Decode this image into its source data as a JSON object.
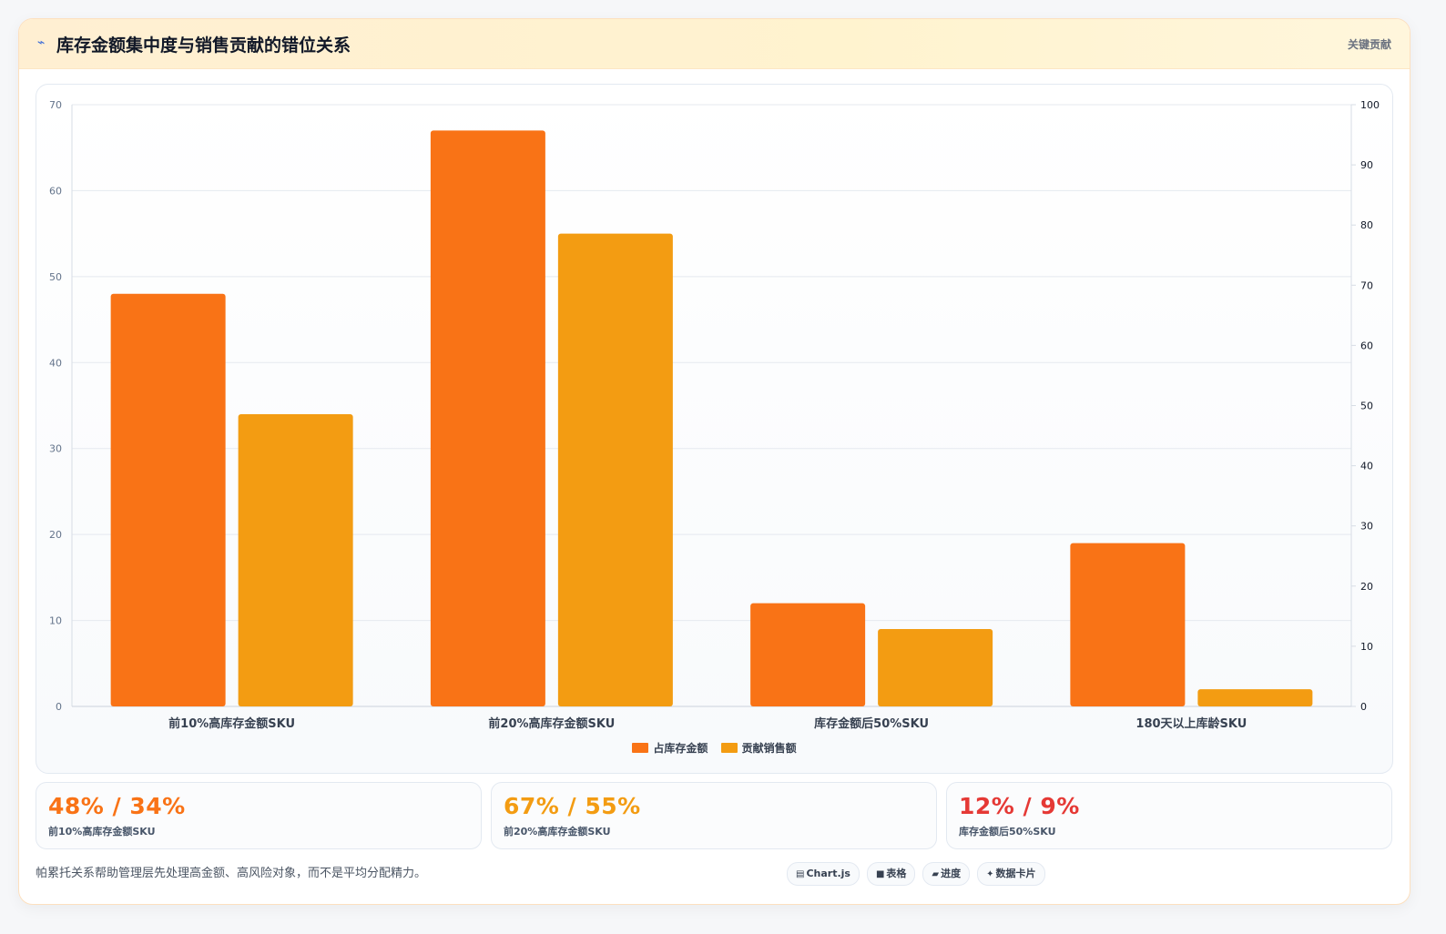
{
  "header": {
    "icon": "lightning-icon",
    "title": "库存金额集中度与销售贡献的错位关系",
    "tag": "关键贡献"
  },
  "colors": {
    "inventory": "#f97316",
    "sales": "#f39c12",
    "stat1": "#f97316",
    "stat2": "#f39c12",
    "stat3": "#e53935"
  },
  "chart_data": {
    "type": "bar",
    "categories": [
      "前10%高库存金额SKU",
      "前20%高库存金额SKU",
      "库存金额后50%SKU",
      "180天以上库龄SKU"
    ],
    "series": [
      {
        "name": "占库存金额",
        "values": [
          48,
          67,
          12,
          19
        ]
      },
      {
        "name": "贡献销售额",
        "values": [
          34,
          55,
          9,
          2
        ]
      }
    ],
    "ylim": [
      0,
      70
    ],
    "yticks": [
      0,
      10,
      20,
      30,
      40,
      50,
      60,
      70
    ],
    "y2lim": [
      0,
      100
    ],
    "y2ticks": [
      0,
      10,
      20,
      30,
      40,
      50,
      60,
      70,
      80,
      90,
      100
    ],
    "grid": true,
    "legend_position": "bottom"
  },
  "stats": [
    {
      "value": "48% / 34%",
      "label": "前10%高库存金额SKU"
    },
    {
      "value": "67% / 55%",
      "label": "前20%高库存金额SKU"
    },
    {
      "value": "12% / 9%",
      "label": "库存金额后50%SKU"
    }
  ],
  "footnote": "帕累托关系帮助管理层先处理高金额、高风险对象，而不是平均分配精力。",
  "pills": [
    {
      "icon": "chart-icon",
      "glyph": "▤",
      "label": "Chart.js"
    },
    {
      "icon": "table-icon",
      "glyph": "■",
      "label": "表格"
    },
    {
      "icon": "progress-icon",
      "glyph": "▰",
      "label": "进度"
    },
    {
      "icon": "sparkle-icon",
      "glyph": "✦",
      "label": "数据卡片"
    }
  ]
}
